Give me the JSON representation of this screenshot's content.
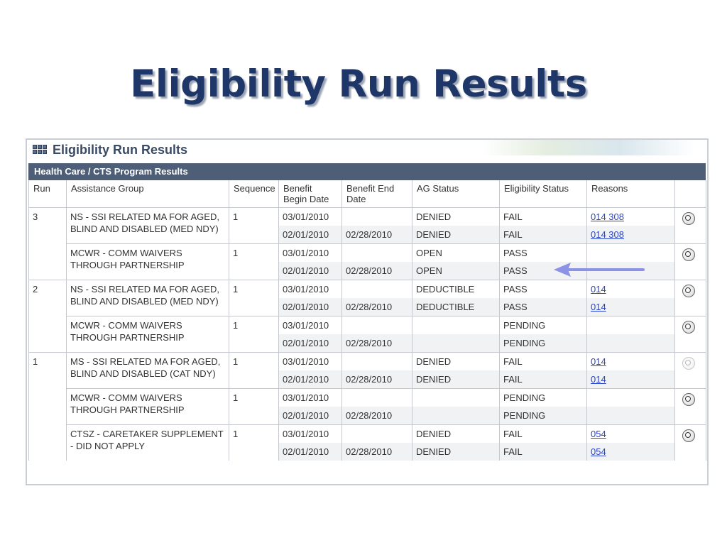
{
  "slide_title": "Eligibility Run Results",
  "panel": {
    "title": "Eligibility Run Results",
    "section": "Health Care / CTS Program Results"
  },
  "columns": {
    "run": "Run",
    "assistance_group": "Assistance Group",
    "sequence": "Sequence",
    "begin": "Benefit Begin Date",
    "end": "Benefit End Date",
    "ag_status": "AG Status",
    "elig": "Eligibility Status",
    "reasons": "Reasons"
  },
  "groups": [
    {
      "run": "3",
      "ag": "NS - SSI RELATED MA FOR AGED, BLIND AND DISABLED (MED NDY)",
      "seq": "1",
      "icon_enabled": true,
      "rows": [
        {
          "begin": "03/01/2010",
          "end": "",
          "ag_status": "DENIED",
          "elig": "FAIL",
          "reasons": "014 308"
        },
        {
          "begin": "02/01/2010",
          "end": "02/28/2010",
          "ag_status": "DENIED",
          "elig": "FAIL",
          "reasons": "014 308"
        }
      ]
    },
    {
      "run": "",
      "ag": "MCWR - COMM WAIVERS THROUGH PARTNERSHIP",
      "seq": "1",
      "icon_enabled": true,
      "rows": [
        {
          "begin": "03/01/2010",
          "end": "",
          "ag_status": "OPEN",
          "elig": "PASS",
          "reasons": ""
        },
        {
          "begin": "02/01/2010",
          "end": "02/28/2010",
          "ag_status": "OPEN",
          "elig": "PASS",
          "reasons": ""
        }
      ]
    },
    {
      "run": "2",
      "ag": "NS - SSI RELATED MA FOR AGED, BLIND AND DISABLED (MED NDY)",
      "seq": "1",
      "icon_enabled": true,
      "rows": [
        {
          "begin": "03/01/2010",
          "end": "",
          "ag_status": "DEDUCTIBLE",
          "elig": "PASS",
          "reasons": "014"
        },
        {
          "begin": "02/01/2010",
          "end": "02/28/2010",
          "ag_status": "DEDUCTIBLE",
          "elig": "PASS",
          "reasons": "014"
        }
      ]
    },
    {
      "run": "",
      "ag": "MCWR - COMM WAIVERS THROUGH PARTNERSHIP",
      "seq": "1",
      "icon_enabled": true,
      "rows": [
        {
          "begin": "03/01/2010",
          "end": "",
          "ag_status": "",
          "elig": "PENDING",
          "reasons": ""
        },
        {
          "begin": "02/01/2010",
          "end": "02/28/2010",
          "ag_status": "",
          "elig": "PENDING",
          "reasons": ""
        }
      ]
    },
    {
      "run": "1",
      "ag": "MS - SSI RELATED MA FOR AGED, BLIND AND DISABLED (CAT NDY)",
      "seq": "1",
      "icon_enabled": false,
      "rows": [
        {
          "begin": "03/01/2010",
          "end": "",
          "ag_status": "DENIED",
          "elig": "FAIL",
          "reasons": "014"
        },
        {
          "begin": "02/01/2010",
          "end": "02/28/2010",
          "ag_status": "DENIED",
          "elig": "FAIL",
          "reasons": "014"
        }
      ]
    },
    {
      "run": "",
      "ag": "MCWR - COMM WAIVERS THROUGH PARTNERSHIP",
      "seq": "1",
      "icon_enabled": true,
      "rows": [
        {
          "begin": "03/01/2010",
          "end": "",
          "ag_status": "",
          "elig": "PENDING",
          "reasons": ""
        },
        {
          "begin": "02/01/2010",
          "end": "02/28/2010",
          "ag_status": "",
          "elig": "PENDING",
          "reasons": ""
        }
      ]
    },
    {
      "run": "",
      "ag": "CTSZ - CARETAKER SUPPLEMENT - DID NOT APPLY",
      "seq": "1",
      "icon_enabled": true,
      "rows": [
        {
          "begin": "03/01/2010",
          "end": "",
          "ag_status": "DENIED",
          "elig": "FAIL",
          "reasons": "054"
        },
        {
          "begin": "02/01/2010",
          "end": "02/28/2010",
          "ag_status": "DENIED",
          "elig": "FAIL",
          "reasons": "054"
        }
      ]
    }
  ],
  "icons": {
    "detail": "magnifier-icon",
    "header": "grid-icon",
    "annotation": "arrow-left-icon"
  },
  "colors": {
    "title": "#1f3668",
    "header_bar": "#4d5e76",
    "link": "#2a44cc",
    "arrow": "#8c92e6"
  }
}
